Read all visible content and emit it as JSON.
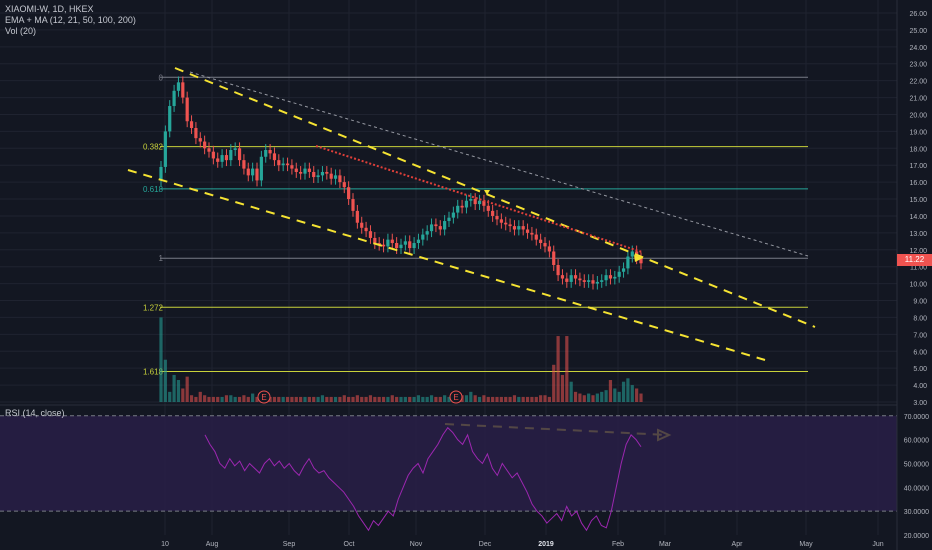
{
  "header": {
    "symbol_line": "XIAOMI-W, 1D, HKEX",
    "indicator_line": "EMA + MA (12, 21, 50, 100, 200)",
    "volume_line": "Vol (20)",
    "rsi_label": "RSI (14, close)"
  },
  "last_price": "11.22",
  "colors": {
    "background": "#131722",
    "up": "#26a69a",
    "down": "#ef5350",
    "channel": "#f5e332",
    "fib": "#c8d13a",
    "rsi_line": "#9c27b0",
    "rsi_band": "#2a1f4a"
  },
  "chart_data": [
    {
      "type": "candlestick",
      "title": "XIAOMI-W, 1D, HKEX",
      "x_ticks": [
        "10",
        "Aug",
        "Sep",
        "Oct",
        "Nov",
        "Dec",
        "2019",
        "Feb",
        "Mar",
        "Apr",
        "May",
        "Jun"
      ],
      "y_ticks": [
        "3.00",
        "4.00",
        "5.00",
        "6.00",
        "7.00",
        "8.00",
        "9.00",
        "10.00",
        "11.00",
        "12.00",
        "13.00",
        "14.00",
        "15.00",
        "16.00",
        "17.00",
        "18.00",
        "19.00",
        "20.00",
        "21.00",
        "22.00",
        "23.00",
        "24.00",
        "25.00",
        "26.00"
      ],
      "ylim": [
        3,
        26
      ],
      "fib_levels": [
        {
          "label": "0",
          "price": 22.2
        },
        {
          "label": "0.382",
          "price": 18.1
        },
        {
          "label": "0.618",
          "price": 15.6
        },
        {
          "label": "1",
          "price": 11.5
        },
        {
          "label": "1.272",
          "price": 8.6
        },
        {
          "label": "1.618",
          "price": 4.8
        }
      ],
      "closes": [
        16.9,
        19.0,
        20.5,
        21.4,
        21.9,
        21.0,
        19.6,
        19.2,
        18.6,
        18.4,
        18.0,
        17.8,
        17.4,
        17.2,
        17.6,
        17.3,
        17.9,
        18.0,
        17.3,
        16.8,
        16.4,
        16.8,
        16.1,
        17.5,
        17.9,
        17.7,
        17.3,
        17.0,
        17.1,
        17.0,
        16.8,
        16.6,
        16.5,
        16.8,
        16.6,
        16.3,
        16.4,
        16.6,
        16.5,
        16.2,
        16.4,
        16.0,
        15.7,
        15.0,
        14.3,
        13.6,
        13.3,
        13.1,
        12.7,
        12.4,
        12.3,
        12.2,
        12.6,
        12.4,
        12.1,
        12.3,
        12.5,
        12.1,
        12.4,
        12.6,
        12.9,
        13.1,
        13.5,
        13.4,
        13.2,
        13.7,
        13.9,
        14.2,
        14.6,
        14.5,
        14.9,
        15.0,
        14.7,
        14.9,
        14.6,
        14.3,
        14.0,
        13.8,
        13.6,
        13.5,
        13.4,
        13.2,
        13.4,
        13.2,
        13.0,
        12.9,
        12.6,
        12.4,
        12.2,
        11.9,
        11.1,
        10.5,
        10.3,
        10.1,
        10.5,
        10.3,
        10.2,
        10.1,
        10.2,
        10.0,
        10.1,
        10.2,
        10.5,
        10.3,
        10.4,
        10.7,
        10.9,
        11.6,
        11.9,
        11.5,
        11.2
      ],
      "volumes": [
        8.0,
        5.5,
        3.6,
        4.6,
        4.3,
        3.8,
        4.5,
        3.4,
        3.3,
        3.6,
        3.4,
        3.3,
        3.3,
        3.3,
        3.3,
        3.4,
        3.4,
        3.3,
        3.3,
        3.4,
        3.3,
        3.5,
        3.3,
        3.4,
        3.4,
        3.3,
        3.3,
        3.3,
        3.3,
        3.3,
        3.3,
        3.3,
        3.3,
        3.3,
        3.3,
        3.3,
        3.3,
        3.4,
        3.3,
        3.3,
        3.3,
        3.3,
        3.4,
        3.3,
        3.3,
        3.4,
        3.3,
        3.3,
        3.4,
        3.3,
        3.3,
        3.3,
        3.3,
        3.4,
        3.3,
        3.3,
        3.3,
        3.3,
        3.3,
        3.4,
        3.3,
        3.3,
        3.4,
        3.3,
        3.3,
        3.4,
        3.3,
        3.3,
        3.5,
        3.4,
        3.4,
        3.6,
        3.4,
        3.3,
        3.4,
        3.3,
        3.3,
        3.3,
        3.3,
        3.3,
        3.3,
        3.4,
        3.3,
        3.3,
        3.3,
        3.3,
        3.3,
        3.4,
        3.4,
        3.3,
        5.2,
        6.9,
        4.6,
        6.9,
        4.2,
        3.6,
        3.5,
        3.4,
        3.5,
        3.4,
        3.5,
        3.6,
        3.7,
        4.3,
        3.8,
        3.6,
        4.2,
        4.4,
        4.0,
        3.8,
        3.5
      ]
    },
    {
      "type": "line",
      "title": "RSI (14, close)",
      "y_ticks": [
        "20.0000",
        "30.0000",
        "40.0000",
        "50.0000",
        "60.0000",
        "70.0000"
      ],
      "ylim": [
        20,
        72
      ],
      "bands": [
        30,
        70
      ],
      "values": [
        62,
        58,
        55,
        50,
        48,
        52,
        49,
        51,
        47,
        50,
        48,
        46,
        50,
        52,
        49,
        51,
        48,
        50,
        47,
        45,
        49,
        52,
        48,
        46,
        47,
        44,
        42,
        40,
        38,
        35,
        32,
        28,
        25,
        22,
        26,
        24,
        27,
        30,
        28,
        35,
        40,
        45,
        48,
        50,
        46,
        52,
        55,
        58,
        62,
        65,
        63,
        60,
        58,
        62,
        55,
        52,
        50,
        54,
        48,
        45,
        50,
        47,
        44,
        46,
        42,
        38,
        33,
        30,
        28,
        25,
        27,
        29,
        26,
        32,
        28,
        30,
        25,
        22,
        26,
        28,
        24,
        23,
        30,
        40,
        50,
        58,
        62,
        60,
        57
      ]
    }
  ]
}
